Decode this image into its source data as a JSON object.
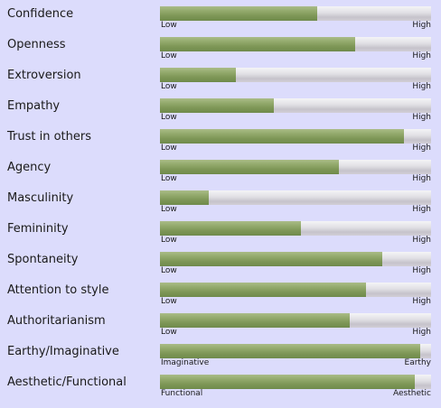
{
  "colors": {
    "background": "#dcdcfc",
    "bar_fill": "#8aa262",
    "bar_track": "#dcdbe0"
  },
  "traits": [
    {
      "label": "Confidence",
      "low": "Low",
      "high": "High",
      "level": 0.58
    },
    {
      "label": "Openness",
      "low": "Low",
      "high": "High",
      "level": 0.72
    },
    {
      "label": "Extroversion",
      "low": "Low",
      "high": "High",
      "level": 0.28
    },
    {
      "label": "Empathy",
      "low": "Low",
      "high": "High",
      "level": 0.42
    },
    {
      "label": "Trust in others",
      "low": "Low",
      "high": "High",
      "level": 0.9
    },
    {
      "label": "Agency",
      "low": "Low",
      "high": "High",
      "level": 0.66
    },
    {
      "label": "Masculinity",
      "low": "Low",
      "high": "High",
      "level": 0.18
    },
    {
      "label": "Femininity",
      "low": "Low",
      "high": "High",
      "level": 0.52
    },
    {
      "label": "Spontaneity",
      "low": "Low",
      "high": "High",
      "level": 0.82
    },
    {
      "label": "Attention to style",
      "low": "Low",
      "high": "High",
      "level": 0.76
    },
    {
      "label": "Authoritarianism",
      "low": "Low",
      "high": "High",
      "level": 0.7
    },
    {
      "label": "Earthy/Imaginative",
      "low": "Imaginative",
      "high": "Earthy",
      "level": 0.96
    },
    {
      "label": "Aesthetic/Functional",
      "low": "Functional",
      "high": "Aesthetic",
      "level": 0.94
    }
  ]
}
